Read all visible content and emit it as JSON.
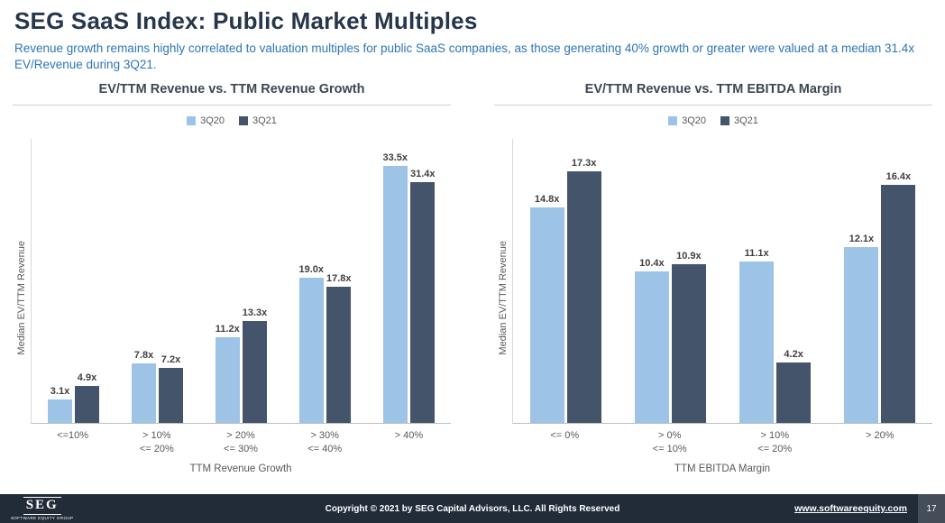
{
  "page": {
    "title": "SEG SaaS Index: Public Market Multiples",
    "subtitle": "Revenue growth remains highly correlated to valuation multiples for public SaaS companies, as those generating 40% growth or greater were valued at a median 31.4x EV/Revenue during 3Q21."
  },
  "colors": {
    "series_3q20": "#9DC3E6",
    "series_3q21": "#44546A",
    "title_text": "#26374B",
    "subtitle_text": "#2E75B6",
    "footer_bg": "#222B38"
  },
  "chart_data": [
    {
      "type": "bar",
      "title": "EV/TTM Revenue vs. TTM Revenue Growth",
      "xlabel": "TTM Revenue Growth",
      "ylabel": "Median EV/TTM Revenue",
      "categories": [
        "<=10%",
        "> 10%\n<= 20%",
        "> 20%\n<= 30%",
        "> 30%\n<= 40%",
        "> 40%"
      ],
      "series": [
        {
          "name": "3Q20",
          "values": [
            3.1,
            7.8,
            11.2,
            19.0,
            33.5
          ]
        },
        {
          "name": "3Q21",
          "values": [
            4.9,
            7.2,
            13.3,
            17.8,
            31.4
          ]
        }
      ],
      "value_suffix": "x",
      "ylim": [
        0,
        37
      ],
      "grid": false,
      "legend_position": "top"
    },
    {
      "type": "bar",
      "title": "EV/TTM Revenue vs. TTM EBITDA Margin",
      "xlabel": "TTM EBITDA Margin",
      "ylabel": "Median EV/TTM Revenue",
      "categories": [
        "<= 0%",
        "> 0%\n<= 10%",
        "> 10%\n<= 20%",
        "> 20%"
      ],
      "series": [
        {
          "name": "3Q20",
          "values": [
            14.8,
            10.4,
            11.1,
            12.1
          ]
        },
        {
          "name": "3Q21",
          "values": [
            17.3,
            10.9,
            4.2,
            16.4
          ]
        }
      ],
      "value_suffix": "x",
      "ylim": [
        0,
        19.5
      ],
      "grid": false,
      "legend_position": "top"
    }
  ],
  "footer": {
    "logo_text": "SEG",
    "logo_subtext": "Software Equity Group",
    "copyright": "Copyright © 2021 by SEG Capital Advisors, LLC. All Rights Reserved",
    "website": "www.softwareequity.com",
    "page_number": "17"
  }
}
